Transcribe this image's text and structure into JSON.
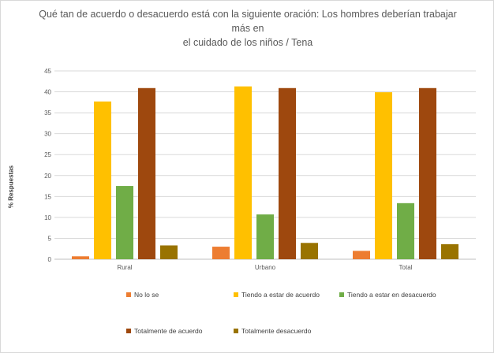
{
  "chart_data": {
    "type": "bar",
    "title_lines": [
      "Qué tan de acuerdo o desacuerdo está con la siguiente oración: Los hombres deberían trabajar más en",
      "el cuidado de los niños / Tena"
    ],
    "ylabel": "% Respuestas",
    "xlabel": "",
    "ylim": [
      0,
      45
    ],
    "yticks": [
      0,
      5,
      10,
      15,
      20,
      25,
      30,
      35,
      40,
      45
    ],
    "grid": true,
    "legend_position": "bottom",
    "categories": [
      "Rural",
      "Urbano",
      "Total"
    ],
    "series": [
      {
        "name": "No lo se",
        "color": "#ED7D31",
        "values": [
          0.7,
          3.0,
          2.0
        ]
      },
      {
        "name": "Tiendo a estar de acuerdo",
        "color": "#FFC000",
        "values": [
          37.7,
          41.3,
          39.9
        ]
      },
      {
        "name": "Tiendo a estar en desacuerdo",
        "color": "#70AD47",
        "values": [
          17.5,
          10.7,
          13.4
        ]
      },
      {
        "name": "Totalmente de acuerdo",
        "color": "#9E480E",
        "values": [
          40.9,
          40.9,
          40.9
        ]
      },
      {
        "name": "Totalmente desacuerdo",
        "color": "#997300",
        "values": [
          3.3,
          3.9,
          3.6
        ]
      }
    ]
  }
}
